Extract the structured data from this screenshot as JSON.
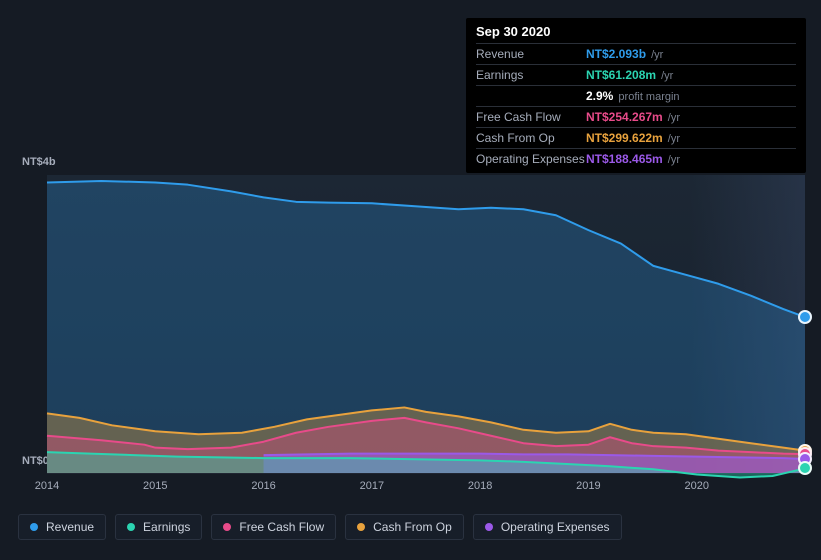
{
  "tooltip": {
    "date": "Sep 30 2020",
    "rows": [
      {
        "label": "Revenue",
        "value": "NT$2.093b",
        "unit": "/yr",
        "color": "#2f9ceb"
      },
      {
        "label": "Earnings",
        "value": "NT$61.208m",
        "unit": "/yr",
        "color": "#2bd4b1"
      },
      {
        "label": "",
        "value": "2.9%",
        "unit": "profit margin",
        "color": "#ffffff"
      },
      {
        "label": "Free Cash Flow",
        "value": "NT$254.267m",
        "unit": "/yr",
        "color": "#e84b8a"
      },
      {
        "label": "Cash From Op",
        "value": "NT$299.622m",
        "unit": "/yr",
        "color": "#e8a23d"
      },
      {
        "label": "Operating Expenses",
        "value": "NT$188.465m",
        "unit": "/yr",
        "color": "#9b59e8"
      }
    ]
  },
  "chart": {
    "type": "area",
    "background_color": "#151b24",
    "plot_bg_top": "#1c2734",
    "plot_bg_bottom": "#17202c",
    "xlim": [
      2014,
      2021
    ],
    "ylim": [
      0,
      4000
    ],
    "y_unit_prefix": "NT$",
    "y_ticks": [
      {
        "v": 4000,
        "label": "NT$4b"
      },
      {
        "v": 0,
        "label": "NT$0"
      }
    ],
    "x_ticks": [
      2014,
      2015,
      2016,
      2017,
      2018,
      2019,
      2020
    ],
    "axis_fontsize": 11,
    "axis_color": "#a6adbb",
    "series": [
      {
        "name": "Revenue",
        "color": "#2f9ceb",
        "fill_opacity": 0.25,
        "line_width": 2,
        "data": [
          [
            2014.0,
            3900
          ],
          [
            2014.5,
            3920
          ],
          [
            2015.0,
            3900
          ],
          [
            2015.3,
            3870
          ],
          [
            2015.7,
            3780
          ],
          [
            2016.0,
            3700
          ],
          [
            2016.3,
            3640
          ],
          [
            2016.6,
            3630
          ],
          [
            2017.0,
            3620
          ],
          [
            2017.4,
            3580
          ],
          [
            2017.8,
            3540
          ],
          [
            2018.1,
            3560
          ],
          [
            2018.4,
            3540
          ],
          [
            2018.7,
            3460
          ],
          [
            2019.0,
            3260
          ],
          [
            2019.3,
            3080
          ],
          [
            2019.6,
            2780
          ],
          [
            2019.9,
            2660
          ],
          [
            2020.2,
            2540
          ],
          [
            2020.5,
            2380
          ],
          [
            2020.8,
            2200
          ],
          [
            2021.0,
            2093
          ]
        ]
      },
      {
        "name": "Cash From Op",
        "color": "#e8a23d",
        "fill_opacity": 0.35,
        "line_width": 2,
        "data": [
          [
            2014.0,
            800
          ],
          [
            2014.3,
            740
          ],
          [
            2014.6,
            640
          ],
          [
            2015.0,
            560
          ],
          [
            2015.4,
            520
          ],
          [
            2015.8,
            540
          ],
          [
            2016.1,
            620
          ],
          [
            2016.4,
            720
          ],
          [
            2016.7,
            780
          ],
          [
            2017.0,
            840
          ],
          [
            2017.3,
            880
          ],
          [
            2017.5,
            820
          ],
          [
            2017.8,
            760
          ],
          [
            2018.1,
            680
          ],
          [
            2018.4,
            580
          ],
          [
            2018.7,
            540
          ],
          [
            2019.0,
            560
          ],
          [
            2019.2,
            660
          ],
          [
            2019.4,
            580
          ],
          [
            2019.6,
            540
          ],
          [
            2019.9,
            520
          ],
          [
            2020.2,
            460
          ],
          [
            2020.5,
            400
          ],
          [
            2020.8,
            340
          ],
          [
            2021.0,
            300
          ]
        ]
      },
      {
        "name": "Free Cash Flow",
        "color": "#e84b8a",
        "fill_opacity": 0.35,
        "line_width": 2,
        "data": [
          [
            2014.0,
            500
          ],
          [
            2014.5,
            440
          ],
          [
            2014.9,
            380
          ],
          [
            2015.0,
            340
          ],
          [
            2015.3,
            320
          ],
          [
            2015.7,
            340
          ],
          [
            2016.0,
            420
          ],
          [
            2016.3,
            540
          ],
          [
            2016.6,
            620
          ],
          [
            2017.0,
            700
          ],
          [
            2017.3,
            740
          ],
          [
            2017.5,
            680
          ],
          [
            2017.8,
            600
          ],
          [
            2018.1,
            500
          ],
          [
            2018.4,
            400
          ],
          [
            2018.7,
            360
          ],
          [
            2019.0,
            380
          ],
          [
            2019.2,
            480
          ],
          [
            2019.4,
            400
          ],
          [
            2019.6,
            360
          ],
          [
            2019.9,
            340
          ],
          [
            2020.2,
            300
          ],
          [
            2020.5,
            280
          ],
          [
            2020.8,
            260
          ],
          [
            2021.0,
            254
          ]
        ]
      },
      {
        "name": "Operating Expenses",
        "color": "#9b59e8",
        "fill_opacity": 0.55,
        "line_width": 2,
        "start_x": 2016.0,
        "data": [
          [
            2016.0,
            240
          ],
          [
            2016.4,
            250
          ],
          [
            2016.8,
            260
          ],
          [
            2017.2,
            260
          ],
          [
            2017.6,
            260
          ],
          [
            2018.0,
            260
          ],
          [
            2018.4,
            250
          ],
          [
            2018.8,
            250
          ],
          [
            2019.2,
            240
          ],
          [
            2019.6,
            230
          ],
          [
            2020.0,
            220
          ],
          [
            2020.4,
            210
          ],
          [
            2020.8,
            200
          ],
          [
            2021.0,
            188
          ]
        ]
      },
      {
        "name": "Earnings",
        "color": "#2bd4b1",
        "fill_opacity": 0.4,
        "line_width": 2,
        "data": [
          [
            2014.0,
            280
          ],
          [
            2014.4,
            260
          ],
          [
            2014.8,
            240
          ],
          [
            2015.2,
            220
          ],
          [
            2015.6,
            210
          ],
          [
            2016.0,
            200
          ],
          [
            2016.4,
            200
          ],
          [
            2016.8,
            200
          ],
          [
            2017.2,
            190
          ],
          [
            2017.6,
            180
          ],
          [
            2018.0,
            170
          ],
          [
            2018.4,
            150
          ],
          [
            2018.8,
            120
          ],
          [
            2019.2,
            90
          ],
          [
            2019.6,
            50
          ],
          [
            2020.0,
            -20
          ],
          [
            2020.4,
            -60
          ],
          [
            2020.7,
            -40
          ],
          [
            2021.0,
            61
          ]
        ]
      }
    ],
    "legend": {
      "items": [
        {
          "label": "Revenue",
          "color": "#2f9ceb"
        },
        {
          "label": "Earnings",
          "color": "#2bd4b1"
        },
        {
          "label": "Free Cash Flow",
          "color": "#e84b8a"
        },
        {
          "label": "Cash From Op",
          "color": "#e8a23d"
        },
        {
          "label": "Operating Expenses",
          "color": "#9b59e8"
        }
      ],
      "fontsize": 12,
      "border_color": "#2a3240"
    },
    "crosshair_x": 2021.0
  }
}
